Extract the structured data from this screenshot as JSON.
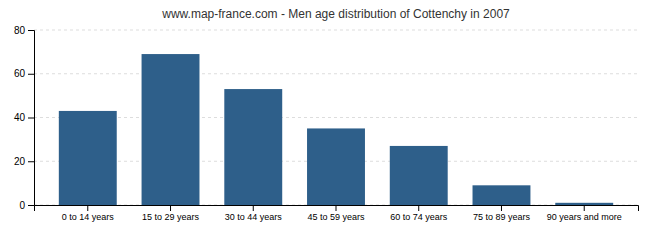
{
  "chart_data": {
    "type": "bar",
    "title": "www.map-france.com - Men age distribution of Cottenchy in 2007",
    "categories": [
      "0 to 14 years",
      "15 to 29 years",
      "30 to 44 years",
      "45 to 59 years",
      "60 to 74 years",
      "75 to 89 years",
      "90 years and more"
    ],
    "values": [
      43,
      69,
      53,
      35,
      27,
      9,
      1
    ],
    "color": "#2e5f8a",
    "ylim": [
      0,
      80
    ],
    "yticks": [
      0,
      20,
      40,
      60,
      80
    ],
    "grid": true
  }
}
